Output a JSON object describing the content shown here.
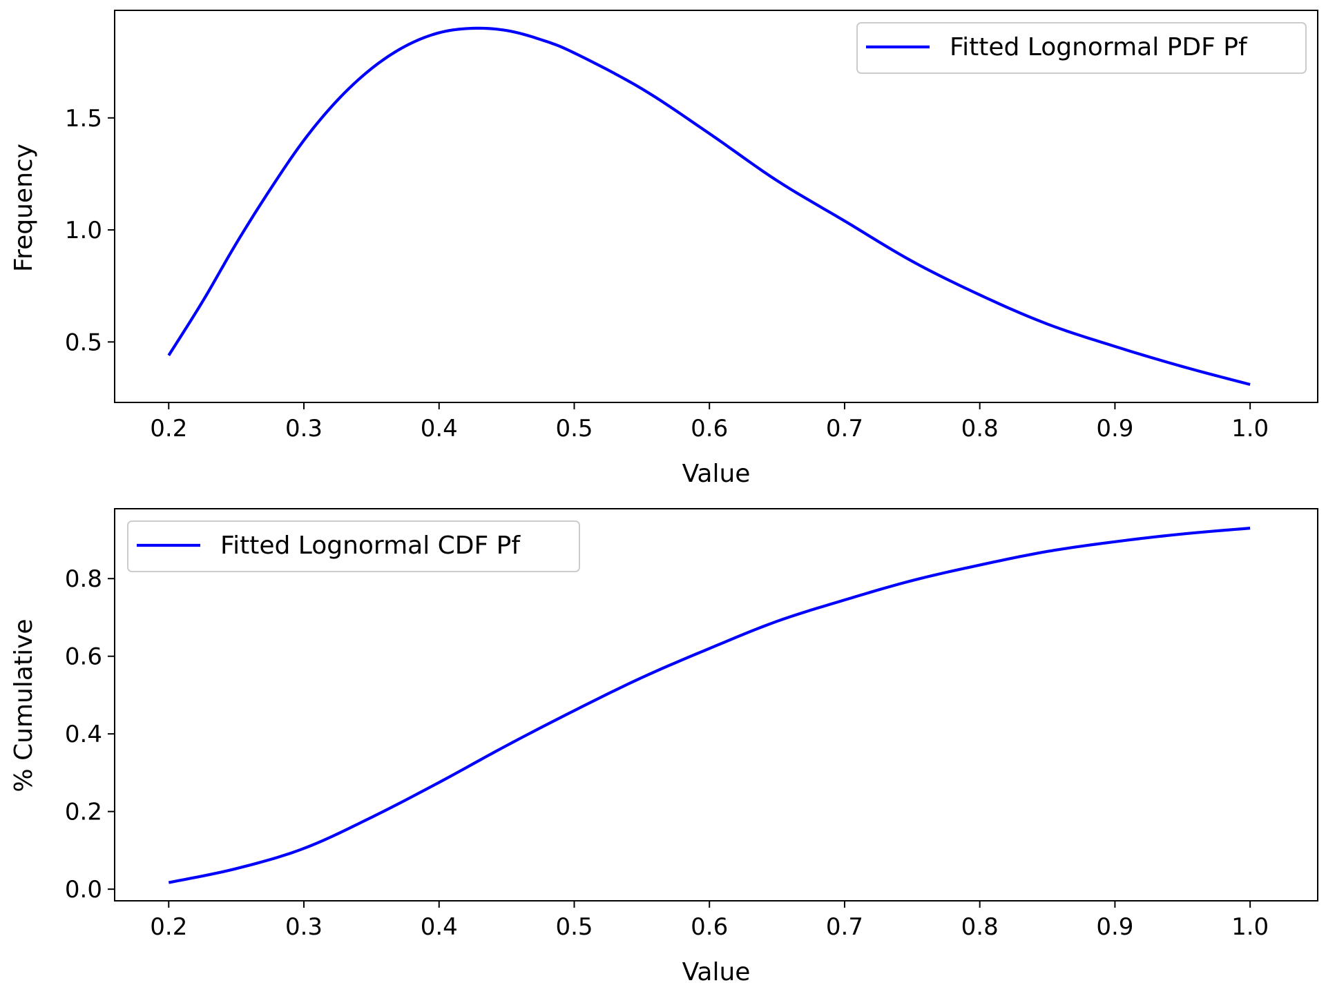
{
  "chart_data": [
    {
      "type": "line",
      "title": "",
      "xlabel": "Value",
      "ylabel": "Frequency",
      "xlim": [
        0.16,
        1.05
      ],
      "ylim": [
        0.23,
        1.98
      ],
      "xticks": [
        "0.2",
        "0.3",
        "0.4",
        "0.5",
        "0.6",
        "0.7",
        "0.8",
        "0.9",
        "1.0"
      ],
      "yticks": [
        "0.5",
        "1.0",
        "1.5"
      ],
      "grid": false,
      "legend_position": "top-right",
      "series": [
        {
          "name": "Fitted Lognormal PDF Pf",
          "color": "#0000ff",
          "x": [
            0.2,
            0.225,
            0.25,
            0.275,
            0.3,
            0.325,
            0.35,
            0.375,
            0.4,
            0.425,
            0.45,
            0.475,
            0.5,
            0.55,
            0.6,
            0.65,
            0.7,
            0.75,
            0.8,
            0.85,
            0.9,
            0.95,
            1.0
          ],
          "y": [
            0.44,
            0.68,
            0.94,
            1.18,
            1.4,
            1.58,
            1.72,
            1.82,
            1.88,
            1.9,
            1.89,
            1.85,
            1.79,
            1.63,
            1.43,
            1.22,
            1.04,
            0.86,
            0.71,
            0.58,
            0.48,
            0.39,
            0.31
          ]
        }
      ]
    },
    {
      "type": "line",
      "title": "",
      "xlabel": "Value",
      "ylabel": "% Cumulative",
      "xlim": [
        0.16,
        1.05
      ],
      "ylim": [
        -0.03,
        0.98
      ],
      "xticks": [
        "0.2",
        "0.3",
        "0.4",
        "0.5",
        "0.6",
        "0.7",
        "0.8",
        "0.9",
        "1.0"
      ],
      "yticks": [
        "0.0",
        "0.2",
        "0.4",
        "0.6",
        "0.8"
      ],
      "grid": false,
      "legend_position": "top-left",
      "series": [
        {
          "name": "Fitted Lognormal CDF Pf",
          "color": "#0000ff",
          "x": [
            0.2,
            0.25,
            0.3,
            0.35,
            0.4,
            0.45,
            0.5,
            0.55,
            0.6,
            0.65,
            0.7,
            0.75,
            0.8,
            0.85,
            0.9,
            0.95,
            1.0
          ],
          "y": [
            0.017,
            0.053,
            0.105,
            0.185,
            0.275,
            0.37,
            0.46,
            0.545,
            0.62,
            0.69,
            0.745,
            0.795,
            0.835,
            0.87,
            0.895,
            0.915,
            0.93
          ]
        }
      ]
    }
  ]
}
